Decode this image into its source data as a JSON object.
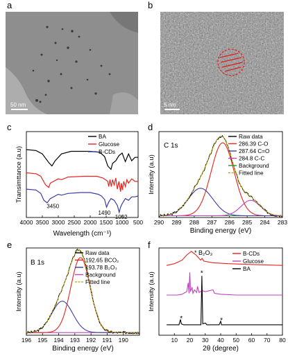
{
  "panels": {
    "a": {
      "label": "a",
      "scale_bar": "50 nm"
    },
    "b": {
      "label": "b",
      "scale_bar": "5 nm"
    },
    "c": {
      "label": "c"
    },
    "d": {
      "label": "d"
    },
    "e": {
      "label": "e"
    },
    "f": {
      "label": "f"
    }
  },
  "colors": {
    "black": "#000000",
    "red": "#e8221d",
    "blue": "#3a3aa8",
    "purple": "#c23fbe",
    "green": "#1f9a2a",
    "olive": "#b8a400"
  },
  "chart_data": [
    {
      "id": "c",
      "type": "line",
      "xlabel": "Wavelength (cm⁻¹)",
      "ylabel": "Transimttance (a.u)",
      "xlim": [
        4000,
        500
      ],
      "xticks": [
        "4000",
        "3500",
        "3000",
        "2500",
        "2000",
        "1500",
        "1000",
        "500"
      ],
      "legend": [
        {
          "name": "BA",
          "color": "#000000"
        },
        {
          "name": "Glucose",
          "color": "#e8221d"
        },
        {
          "name": "B-CDs",
          "color": "#3a3aa8"
        }
      ],
      "annotations": [
        "3450",
        "1490",
        "1092"
      ],
      "series": [
        {
          "name": "BA",
          "color": "#000000",
          "points": [
            [
              4000,
              0.79
            ],
            [
              3700,
              0.78
            ],
            [
              3500,
              0.74
            ],
            [
              3300,
              0.64
            ],
            [
              3200,
              0.6
            ],
            [
              3100,
              0.66
            ],
            [
              2900,
              0.74
            ],
            [
              2600,
              0.77
            ],
            [
              2300,
              0.77
            ],
            [
              2000,
              0.77
            ],
            [
              1700,
              0.76
            ],
            [
              1550,
              0.71
            ],
            [
              1450,
              0.6
            ],
            [
              1350,
              0.56
            ],
            [
              1300,
              0.63
            ],
            [
              1200,
              0.66
            ],
            [
              1100,
              0.72
            ],
            [
              1000,
              0.75
            ],
            [
              900,
              0.65
            ],
            [
              800,
              0.74
            ],
            [
              700,
              0.66
            ],
            [
              600,
              0.7
            ],
            [
              500,
              0.7
            ]
          ]
        },
        {
          "name": "Glucose",
          "color": "#e8221d",
          "points": [
            [
              4000,
              0.52
            ],
            [
              3700,
              0.51
            ],
            [
              3550,
              0.48
            ],
            [
              3400,
              0.38
            ],
            [
              3300,
              0.35
            ],
            [
              3250,
              0.4
            ],
            [
              3000,
              0.45
            ],
            [
              2900,
              0.44
            ],
            [
              2700,
              0.47
            ],
            [
              2200,
              0.48
            ],
            [
              1800,
              0.48
            ],
            [
              1600,
              0.46
            ],
            [
              1450,
              0.42
            ],
            [
              1420,
              0.36
            ],
            [
              1380,
              0.44
            ],
            [
              1340,
              0.36
            ],
            [
              1300,
              0.44
            ],
            [
              1250,
              0.38
            ],
            [
              1200,
              0.46
            ],
            [
              1150,
              0.33
            ],
            [
              1100,
              0.42
            ],
            [
              1050,
              0.3
            ],
            [
              1020,
              0.4
            ],
            [
              990,
              0.32
            ],
            [
              950,
              0.42
            ],
            [
              900,
              0.36
            ],
            [
              850,
              0.44
            ],
            [
              800,
              0.4
            ],
            [
              700,
              0.45
            ],
            [
              600,
              0.42
            ],
            [
              500,
              0.42
            ]
          ]
        },
        {
          "name": "B-CDs",
          "color": "#3a3aa8",
          "points": [
            [
              4000,
              0.33
            ],
            [
              3700,
              0.32
            ],
            [
              3550,
              0.28
            ],
            [
              3450,
              0.2
            ],
            [
              3350,
              0.17
            ],
            [
              3250,
              0.22
            ],
            [
              3000,
              0.27
            ],
            [
              2900,
              0.26
            ],
            [
              2700,
              0.28
            ],
            [
              2300,
              0.29
            ],
            [
              2000,
              0.29
            ],
            [
              1750,
              0.27
            ],
            [
              1650,
              0.25
            ],
            [
              1550,
              0.21
            ],
            [
              1490,
              0.12
            ],
            [
              1420,
              0.18
            ],
            [
              1350,
              0.22
            ],
            [
              1250,
              0.2
            ],
            [
              1150,
              0.14
            ],
            [
              1092,
              0.06
            ],
            [
              1050,
              0.12
            ],
            [
              1000,
              0.16
            ],
            [
              900,
              0.22
            ],
            [
              800,
              0.2
            ],
            [
              700,
              0.24
            ],
            [
              600,
              0.24
            ],
            [
              500,
              0.25
            ]
          ]
        }
      ]
    },
    {
      "id": "d",
      "type": "line",
      "xlabel": "Binding energy (eV)",
      "ylabel": "Intensity (a.u)",
      "xlim": [
        290,
        283
      ],
      "xticks": [
        "290",
        "289",
        "288",
        "287",
        "286",
        "285",
        "284",
        "283"
      ],
      "inner_label": "C 1s",
      "legend": [
        {
          "name": "Raw data",
          "color": "#000000"
        },
        {
          "name": "286.39 C-O",
          "color": "#e8221d"
        },
        {
          "name": "287.64 C=O",
          "color": "#3a3aa8"
        },
        {
          "name": "284.8 C-C",
          "color": "#c23fbe"
        },
        {
          "name": "Background",
          "color": "#1f9a2a"
        },
        {
          "name": "Fitted line",
          "color": "#b8a400"
        }
      ],
      "peaks": [
        {
          "name": "286.39 C-O",
          "center": 286.39,
          "height": 0.85,
          "width": 0.65,
          "color": "#e8221d"
        },
        {
          "name": "287.64 C=O",
          "center": 287.64,
          "height": 0.32,
          "width": 0.7,
          "color": "#3a3aa8"
        },
        {
          "name": "284.8 C-C",
          "center": 284.8,
          "height": 0.18,
          "width": 0.55,
          "color": "#c23fbe"
        }
      ],
      "background": 0.02
    },
    {
      "id": "e",
      "type": "line",
      "xlabel": "Binding energy (eV)",
      "ylabel": "Intensity (a.u)",
      "xlim": [
        196,
        189
      ],
      "xticks": [
        "196",
        "195",
        "194",
        "193",
        "192",
        "191",
        "190"
      ],
      "inner_label": "B 1s",
      "legend": [
        {
          "name": "Raw data",
          "color": "#000000"
        },
        {
          "name": "192.65 BCO₂",
          "color": "#e8221d"
        },
        {
          "name": "193.78 B₂O₃",
          "color": "#3a3aa8"
        },
        {
          "name": "Background",
          "color": "#c23fbe"
        },
        {
          "name": "Fitted line",
          "color": "#b8a400"
        }
      ],
      "peaks": [
        {
          "name": "192.65 BCO₂",
          "center": 192.65,
          "height": 0.86,
          "width": 0.6,
          "color": "#e8221d"
        },
        {
          "name": "193.78 B₂O₃",
          "center": 193.78,
          "height": 0.36,
          "width": 0.65,
          "color": "#3a3aa8"
        }
      ],
      "background": 0.03
    },
    {
      "id": "f",
      "type": "line",
      "xlabel": "2θ (degree)",
      "ylabel": "Intensity (a.u)",
      "xlim": [
        0,
        80
      ],
      "xticks": [
        "10",
        "20",
        "30",
        "40",
        "50",
        "60",
        "70",
        "80"
      ],
      "star_label": "* B₂O₃",
      "legend": [
        {
          "name": "B-CDs",
          "color": "#e8221d"
        },
        {
          "name": "Glucose",
          "color": "#c23fbe"
        },
        {
          "name": "BA",
          "color": "#000000"
        }
      ],
      "star_positions": [
        14.5,
        27.8,
        40.5
      ],
      "series": [
        {
          "name": "B-CDs",
          "color": "#e8221d",
          "points": [
            [
              5,
              0.8
            ],
            [
              10,
              0.82
            ],
            [
              15,
              0.86
            ],
            [
              18,
              0.92
            ],
            [
              21,
              0.96
            ],
            [
              24,
              0.92
            ],
            [
              27,
              0.86
            ],
            [
              28,
              0.88
            ],
            [
              29,
              0.85
            ],
            [
              35,
              0.83
            ],
            [
              45,
              0.82
            ],
            [
              60,
              0.81
            ],
            [
              80,
              0.8
            ]
          ]
        },
        {
          "name": "Glucose",
          "color": "#c23fbe",
          "points": [
            [
              5,
              0.46
            ],
            [
              12,
              0.46
            ],
            [
              15,
              0.47
            ],
            [
              18,
              0.5
            ],
            [
              19,
              0.6
            ],
            [
              19.5,
              0.48
            ],
            [
              20,
              0.72
            ],
            [
              20.5,
              0.5
            ],
            [
              21.5,
              0.55
            ],
            [
              22,
              0.48
            ],
            [
              23,
              0.52
            ],
            [
              24.5,
              0.49
            ],
            [
              25,
              0.56
            ],
            [
              26,
              0.49
            ],
            [
              28,
              0.51
            ],
            [
              30,
              0.5
            ],
            [
              35,
              0.52
            ],
            [
              36,
              0.48
            ],
            [
              40,
              0.47
            ],
            [
              50,
              0.46
            ],
            [
              60,
              0.46
            ],
            [
              80,
              0.46
            ]
          ]
        },
        {
          "name": "BA",
          "color": "#000000",
          "points": [
            [
              5,
              0.12
            ],
            [
              13,
              0.12
            ],
            [
              14,
              0.18
            ],
            [
              14.5,
              0.13
            ],
            [
              16,
              0.12
            ],
            [
              27.2,
              0.12
            ],
            [
              27.8,
              0.68
            ],
            [
              28.4,
              0.13
            ],
            [
              30,
              0.14
            ],
            [
              31,
              0.12
            ],
            [
              39,
              0.12
            ],
            [
              40,
              0.16
            ],
            [
              40.5,
              0.12
            ],
            [
              50,
              0.12
            ],
            [
              60,
              0.12
            ],
            [
              80,
              0.12
            ]
          ]
        }
      ]
    }
  ]
}
